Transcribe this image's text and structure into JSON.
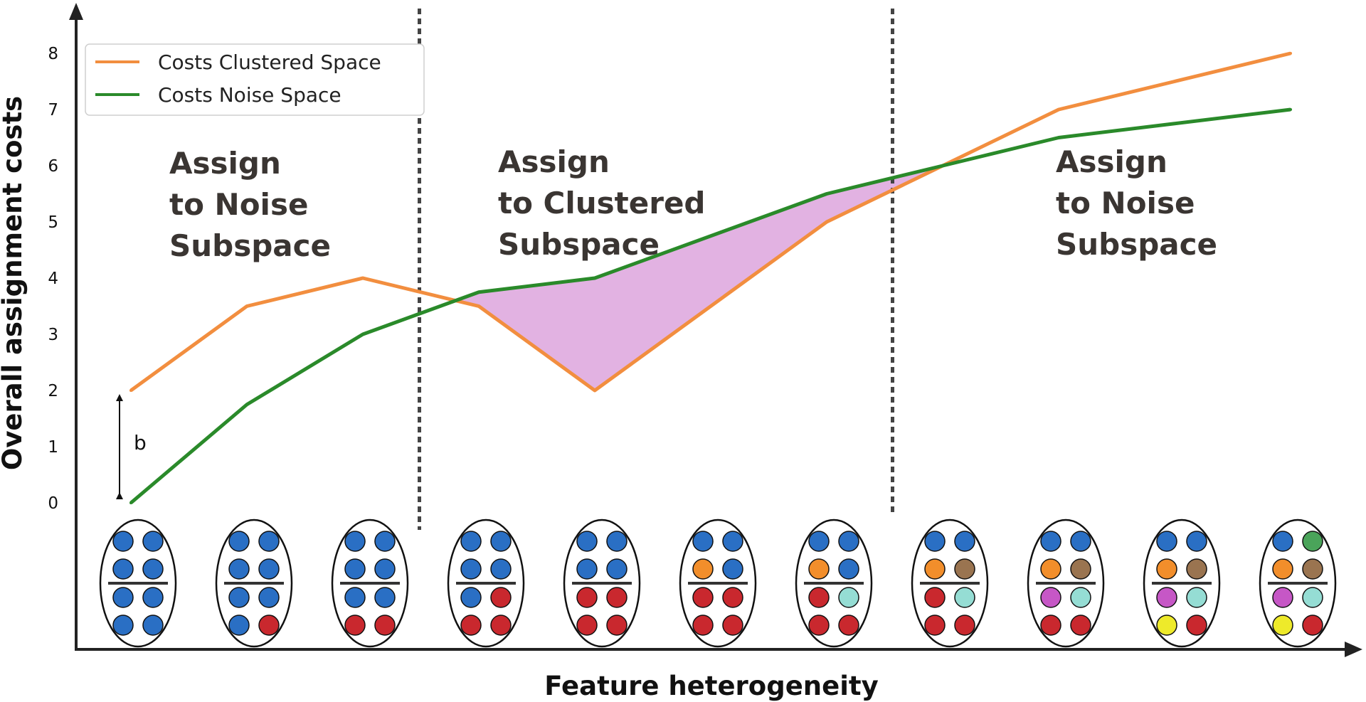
{
  "chart_data": {
    "type": "line",
    "title": "",
    "xlabel": "Feature heterogeneity",
    "ylabel": "Overall assignment costs",
    "x": [
      1,
      2,
      3,
      4,
      5,
      6,
      7,
      8,
      9,
      10,
      11
    ],
    "ylim": [
      0,
      8
    ],
    "yticks": [
      "0",
      "1",
      "2",
      "3",
      "4",
      "5",
      "6",
      "7",
      "8"
    ],
    "grid": false,
    "legend": "top-left",
    "series": [
      {
        "name": "Costs Clustered Space",
        "color": "#f28e3f",
        "values": [
          2,
          3.5,
          4,
          3.5,
          2,
          3.5,
          5,
          6,
          7,
          7.5,
          8
        ]
      },
      {
        "name": "Costs Noise Space",
        "color": "#2a8a2a",
        "values": [
          0,
          1.75,
          3,
          3.75,
          4,
          4.75,
          5.5,
          6,
          6.5,
          6.75,
          7
        ]
      }
    ],
    "highlight_fill": "#e2b2e2",
    "dividers_x": [
      4,
      8
    ],
    "region_labels": [
      {
        "lines": [
          "Assign",
          "to Noise",
          "Subspace"
        ]
      },
      {
        "lines": [
          "Assign",
          "to Clustered",
          "Subspace"
        ]
      },
      {
        "lines": [
          "Assign",
          "to Noise",
          "Subspace"
        ]
      }
    ],
    "b_annotation": {
      "label": "b",
      "x": 1,
      "from": 0,
      "to": 2
    },
    "point_colors": {
      "blue": "#2a6fc4",
      "red": "#c9282e",
      "orange": "#f28e2b",
      "brown": "#9a7450",
      "cyan": "#95ddd4",
      "magenta": "#c657c6",
      "yellow": "#eeea2a",
      "green": "#4aa45a"
    },
    "clusters": [
      [
        "blue",
        "blue",
        "blue",
        "blue",
        "blue",
        "blue",
        "blue",
        "blue"
      ],
      [
        "blue",
        "blue",
        "blue",
        "blue",
        "blue",
        "blue",
        "blue",
        "red"
      ],
      [
        "blue",
        "blue",
        "blue",
        "blue",
        "blue",
        "blue",
        "red",
        "red"
      ],
      [
        "blue",
        "blue",
        "blue",
        "blue",
        "blue",
        "red",
        "red",
        "red"
      ],
      [
        "blue",
        "blue",
        "blue",
        "blue",
        "red",
        "red",
        "red",
        "red"
      ],
      [
        "blue",
        "blue",
        "orange",
        "blue",
        "red",
        "red",
        "red",
        "red"
      ],
      [
        "blue",
        "blue",
        "orange",
        "blue",
        "red",
        "cyan",
        "red",
        "red"
      ],
      [
        "blue",
        "blue",
        "orange",
        "brown",
        "red",
        "cyan",
        "red",
        "red"
      ],
      [
        "blue",
        "blue",
        "orange",
        "brown",
        "magenta",
        "cyan",
        "red",
        "red"
      ],
      [
        "blue",
        "blue",
        "orange",
        "brown",
        "magenta",
        "cyan",
        "yellow",
        "red"
      ],
      [
        "blue",
        "green",
        "orange",
        "brown",
        "magenta",
        "cyan",
        "yellow",
        "red"
      ]
    ]
  }
}
